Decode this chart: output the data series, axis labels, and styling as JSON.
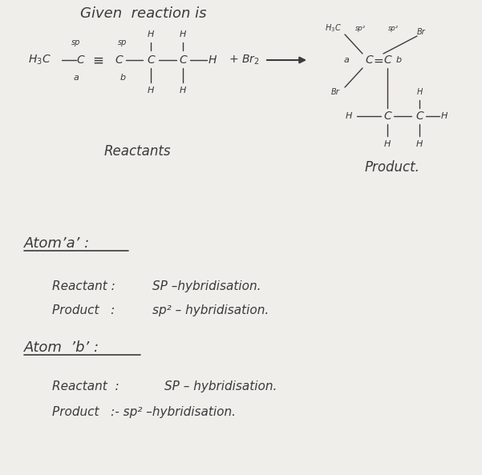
{
  "background_color": "#f0eeeb",
  "text_color": "#3a3a3a",
  "fig_width": 6.01,
  "fig_height": 5.93,
  "dpi": 100,
  "title": "Given  reaction is",
  "reactants_label": "Reactants",
  "product_label": "Product.",
  "atom_a_header": "Atom’a’ :",
  "atom_b_header": "Atom  ’b’ :",
  "reactant_a_line1": "Reactant :   SP –hybridisation.",
  "reactant_a_line2": "Product   :   sp² – hybridisation.",
  "reactant_b_line1": "Reactant  :   SP – hybridisation.",
  "reactant_b_line2": "Product   :-  sp² –hybridisation."
}
